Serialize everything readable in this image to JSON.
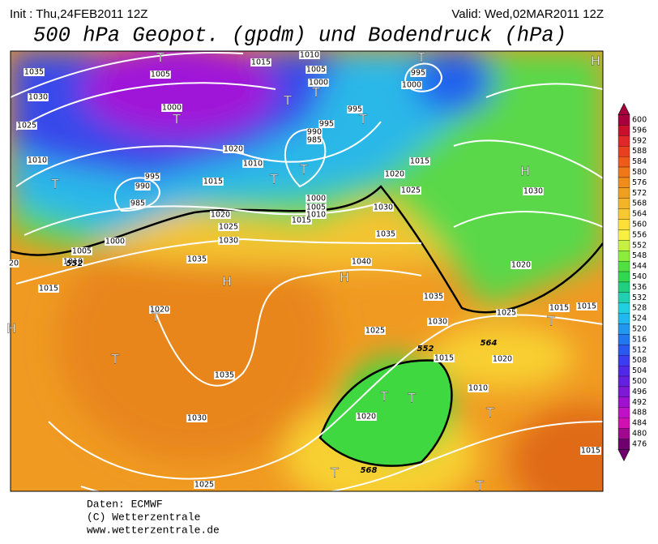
{
  "header": {
    "init": "Init : Thu,24FEB2011 12Z",
    "valid": "Valid: Wed,02MAR2011 12Z",
    "title": "500 hPa Geopot. (gpdm) und Bodendruck (hPa)"
  },
  "colorbar": {
    "levels": [
      600,
      596,
      592,
      588,
      584,
      580,
      576,
      572,
      568,
      564,
      560,
      556,
      552,
      548,
      544,
      540,
      536,
      532,
      528,
      524,
      520,
      516,
      512,
      508,
      504,
      500,
      496,
      492,
      488,
      484,
      480,
      476
    ],
    "colors": [
      "#a8003c",
      "#c8102e",
      "#e02828",
      "#e8401e",
      "#f05a1a",
      "#f07818",
      "#f08c1a",
      "#f0a020",
      "#f4b428",
      "#f8c830",
      "#fce038",
      "#f8f040",
      "#c8f040",
      "#8cec3c",
      "#50e040",
      "#30d850",
      "#20d080",
      "#20d0b0",
      "#20d0e0",
      "#20b8f0",
      "#2098f0",
      "#2078f0",
      "#2858f0",
      "#3c3cf0",
      "#5028e8",
      "#6420e0",
      "#8018d8",
      "#a010d0",
      "#c010c8",
      "#d010b0",
      "#a00890",
      "#700070"
    ]
  },
  "map_labels": [
    "T",
    "T",
    "H",
    "1035",
    "1005",
    "1015",
    "1010",
    "1005",
    "995",
    "1000",
    "1000",
    "1030",
    "T",
    "T",
    "1000",
    "995",
    "T",
    "T",
    "1025",
    "995",
    "990",
    "985",
    "1020",
    "1010",
    "1010",
    "1015",
    "H",
    "995",
    "990",
    "T",
    "1015",
    "T",
    "T",
    "1020",
    "1025",
    "1030",
    "985",
    "1000",
    "1005",
    "1010",
    "1015",
    "1030",
    "1020",
    "1025",
    "1000",
    "1005",
    "1010",
    "1030",
    "1035",
    "1035",
    "1040",
    "H",
    "H",
    "1015",
    "1020",
    "1020",
    "T",
    "1035",
    "1025",
    "1015",
    "1015",
    "T",
    "1030",
    "1025",
    "T",
    "1015",
    "1020",
    "1035",
    "1010",
    "T",
    "T",
    "T",
    "1030",
    "1020",
    "T",
    "1025",
    "T",
    "1015",
    "20",
    "H",
    "552",
    "564",
    "568",
    "552"
  ],
  "footer": [
    "Daten: ECMWF",
    "(C) Wetterzentrale",
    "www.wetterzentrale.de"
  ]
}
